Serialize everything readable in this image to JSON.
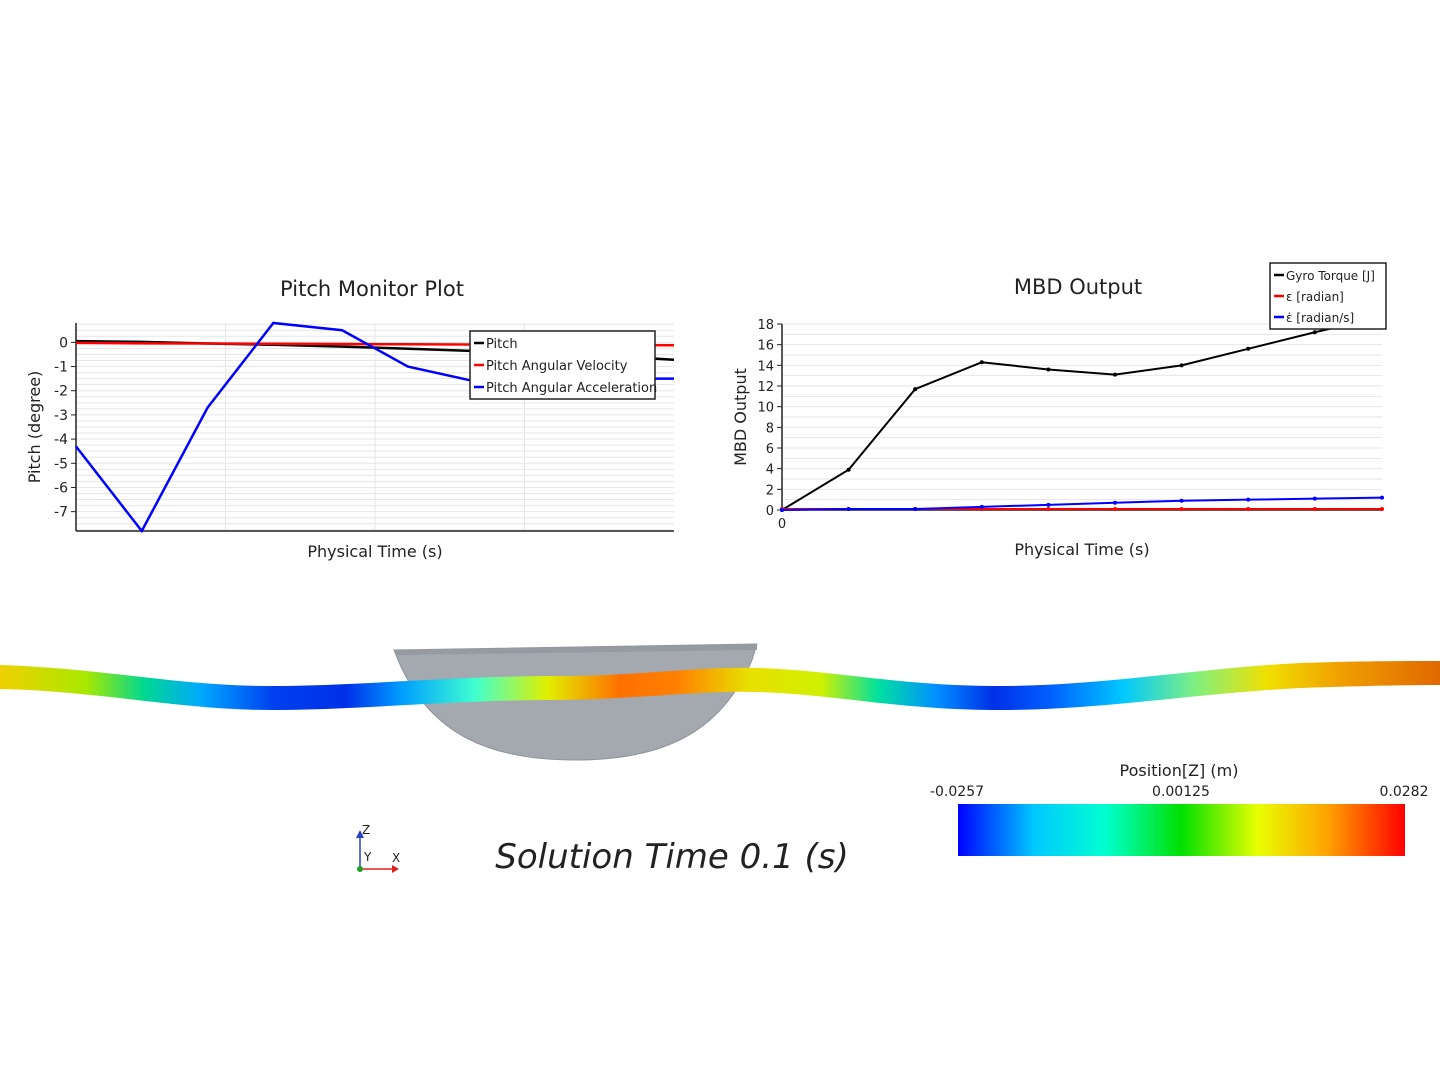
{
  "chart_data": [
    {
      "type": "line",
      "title": "Pitch Monitor Plot",
      "xlabel": "Physical Time (s)",
      "ylabel": "Pitch (degree)",
      "xlim": [
        0,
        1
      ],
      "ylim": [
        -7.8,
        0.8
      ],
      "y_ticks": [
        "0",
        "-1",
        "-2",
        "-3",
        "-4",
        "-5",
        "-6",
        "-7"
      ],
      "y_tick_values": [
        0,
        -1,
        -2,
        -3,
        -4,
        -5,
        -6,
        -7
      ],
      "legend_position": "top-right",
      "grid": true,
      "series": [
        {
          "name": "Pitch",
          "color": "#000000",
          "x": [
            0,
            0.11,
            0.22,
            0.33,
            0.44,
            0.55,
            0.66,
            0.77,
            0.88,
            1.0
          ],
          "y": [
            0.05,
            0.02,
            -0.05,
            -0.1,
            -0.17,
            -0.26,
            -0.35,
            -0.45,
            -0.55,
            -0.72
          ]
        },
        {
          "name": "Pitch Angular Velocity",
          "color": "#ff0000",
          "x": [
            0,
            0.11,
            0.22,
            0.33,
            0.44,
            0.55,
            0.66,
            0.77,
            0.88,
            1.0
          ],
          "y": [
            -0.02,
            -0.04,
            -0.05,
            -0.06,
            -0.07,
            -0.08,
            -0.09,
            -0.1,
            -0.11,
            -0.12
          ]
        },
        {
          "name": "Pitch Angular Acceleration",
          "color": "#0000ff",
          "x": [
            0,
            0.11,
            0.22,
            0.33,
            0.445,
            0.555,
            0.665,
            0.775,
            0.885,
            1.0
          ],
          "y": [
            -4.3,
            -7.8,
            -2.7,
            0.8,
            0.5,
            -1.0,
            -1.6,
            -1.55,
            -1.5,
            -1.5
          ]
        }
      ]
    },
    {
      "type": "line",
      "title": "MBD Output",
      "xlabel": "Physical Time (s)",
      "ylabel": "MBD Output",
      "xlim": [
        0,
        1
      ],
      "ylim": [
        0,
        18
      ],
      "x_ticks": [
        "0"
      ],
      "y_ticks": [
        "0",
        "2",
        "4",
        "6",
        "8",
        "10",
        "12",
        "14",
        "16",
        "18"
      ],
      "y_tick_values": [
        0,
        2,
        4,
        6,
        8,
        10,
        12,
        14,
        16,
        18
      ],
      "legend_position": "top-right",
      "grid": true,
      "series": [
        {
          "name": "Gyro Torque [J]",
          "color": "#000000",
          "x": [
            0,
            0.111,
            0.222,
            0.333,
            0.444,
            0.555,
            0.666,
            0.777,
            0.888,
            1.0
          ],
          "y": [
            0,
            3.9,
            11.7,
            14.3,
            13.6,
            13.1,
            14.0,
            15.6,
            17.2,
            18.7
          ]
        },
        {
          "name": "ε [radian]",
          "color": "#ff0000",
          "x": [
            0,
            0.111,
            0.222,
            0.333,
            0.444,
            0.555,
            0.666,
            0.777,
            0.888,
            1.0
          ],
          "y": [
            0.1,
            0.1,
            0.1,
            0.1,
            0.1,
            0.1,
            0.1,
            0.1,
            0.1,
            0.1
          ]
        },
        {
          "name": "ε̇ [radian/s]",
          "color": "#0000ff",
          "x": [
            0,
            0.111,
            0.222,
            0.333,
            0.444,
            0.555,
            0.666,
            0.777,
            0.888,
            1.0
          ],
          "y": [
            0.0,
            0.1,
            0.1,
            0.3,
            0.5,
            0.7,
            0.9,
            1.0,
            1.1,
            1.2
          ]
        }
      ]
    }
  ],
  "scene": {
    "colorbar": {
      "title": "Position[Z] (m)",
      "min_label": "-0.0257",
      "mid_label": "0.00125",
      "max_label": "0.0282",
      "colors": [
        "#0000ff",
        "#00c8ff",
        "#00ffd0",
        "#00e000",
        "#e8ff00",
        "#ffa000",
        "#ff0000"
      ]
    },
    "solution_time": "Solution Time 0.1 (s)",
    "axis_triad": {
      "z": "Z",
      "y": "Y",
      "x": "X"
    }
  }
}
